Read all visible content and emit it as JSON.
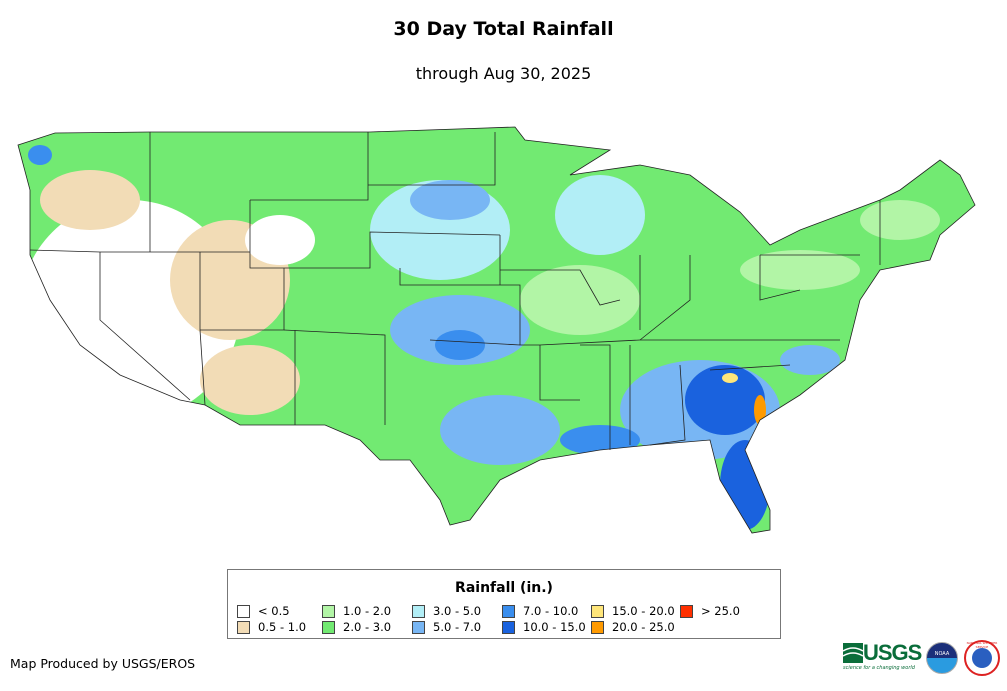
{
  "title": "30 Day Total Rainfall",
  "subtitle": "through Aug 30, 2025",
  "legend": {
    "title": "Rainfall (in.)",
    "items": [
      {
        "label": "< 0.5",
        "color": "#ffffff"
      },
      {
        "label": "0.5 - 1.0",
        "color": "#f2dcb6"
      },
      {
        "label": "1.0 - 2.0",
        "color": "#b2f5a6"
      },
      {
        "label": "2.0 - 3.0",
        "color": "#72ea72"
      },
      {
        "label": "3.0 - 5.0",
        "color": "#b2eef6"
      },
      {
        "label": "5.0 - 7.0",
        "color": "#78b6f4"
      },
      {
        "label": "7.0 - 10.0",
        "color": "#3a8eee"
      },
      {
        "label": "10.0 - 15.0",
        "color": "#1a62de"
      },
      {
        "label": "15.0 - 20.0",
        "color": "#ffe67a"
      },
      {
        "label": "20.0 - 25.0",
        "color": "#ff9a00"
      },
      {
        "label": "> 25.0",
        "color": "#ff3000"
      }
    ]
  },
  "credit": "Map Produced by USGS/EROS",
  "logos": {
    "usgs": "USGS",
    "usgs_tagline": "science for a changing world",
    "noaa": "NOAA",
    "nws": "NATIONAL WEATHER SERVICE"
  }
}
